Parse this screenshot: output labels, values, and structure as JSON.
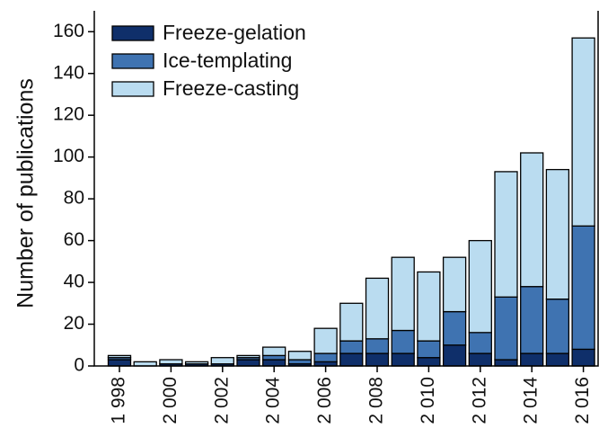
{
  "chart_data": {
    "type": "stacked_bar",
    "y_label": "Number of publications",
    "categories": [
      "1 998",
      null,
      "2 000",
      null,
      "2 002",
      null,
      "2 004",
      null,
      "2 006",
      null,
      "2 008",
      null,
      "2 010",
      null,
      "2 012",
      null,
      "2 014",
      null,
      "2 016"
    ],
    "series": [
      {
        "name": "Freeze-gelation",
        "color": "#0f2f6a",
        "values": [
          3,
          0,
          1,
          1,
          1,
          3,
          3,
          1,
          2,
          6,
          6,
          6,
          4,
          10,
          6,
          3,
          6,
          6,
          8
        ]
      },
      {
        "name": "Ice-templating",
        "color": "#3f73b1",
        "values": [
          1,
          0,
          0,
          0,
          0,
          1,
          2,
          2,
          4,
          6,
          7,
          11,
          8,
          16,
          10,
          30,
          32,
          26,
          59
        ]
      },
      {
        "name": "Freeze-casting",
        "color": "#badcf0",
        "values": [
          1,
          2,
          2,
          1,
          3,
          1,
          4,
          4,
          12,
          18,
          29,
          35,
          33,
          26,
          44,
          60,
          64,
          62,
          90
        ]
      }
    ],
    "ylim": [
      0,
      170
    ],
    "yticks": [
      0,
      20,
      40,
      60,
      80,
      100,
      120,
      140,
      160
    ],
    "legend": "upper-left"
  }
}
